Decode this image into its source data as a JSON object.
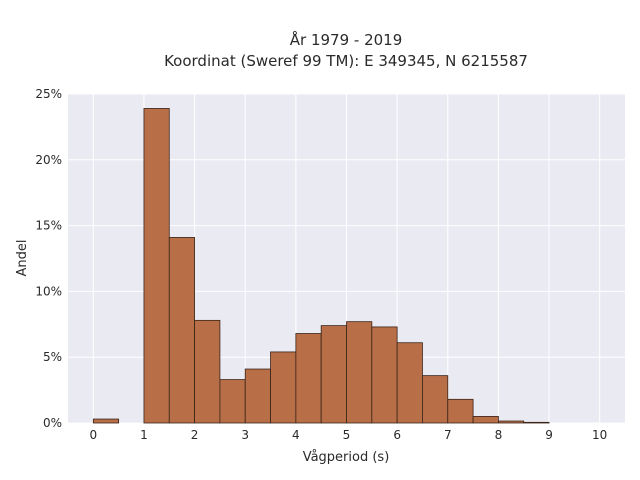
{
  "chart_data": {
    "type": "bar",
    "title": "År 1979 - 2019",
    "subtitle": "Koordinat (Sweref 99 TM): E 349345, N 6215587",
    "xlabel": "Vågperiod (s)",
    "ylabel": "Andel",
    "xlim": [
      -0.5,
      10.5
    ],
    "ylim": [
      0,
      25
    ],
    "xticks": [
      0,
      1,
      2,
      3,
      4,
      5,
      6,
      7,
      8,
      9,
      10
    ],
    "yticks": [
      0,
      5,
      10,
      15,
      20,
      25
    ],
    "ytick_labels": [
      "0%",
      "5%",
      "10%",
      "15%",
      "20%",
      "25%"
    ],
    "grid": true,
    "bar_color": "#b86f48",
    "bin_width": 0.5,
    "bins": [
      {
        "x0": 0.0,
        "value": 0.3
      },
      {
        "x0": 0.5,
        "value": 0.0
      },
      {
        "x0": 1.0,
        "value": 23.9
      },
      {
        "x0": 1.5,
        "value": 14.1
      },
      {
        "x0": 2.0,
        "value": 7.8
      },
      {
        "x0": 2.5,
        "value": 3.3
      },
      {
        "x0": 3.0,
        "value": 4.1
      },
      {
        "x0": 3.5,
        "value": 5.4
      },
      {
        "x0": 4.0,
        "value": 6.8
      },
      {
        "x0": 4.5,
        "value": 7.4
      },
      {
        "x0": 5.0,
        "value": 7.7
      },
      {
        "x0": 5.5,
        "value": 7.3
      },
      {
        "x0": 6.0,
        "value": 6.1
      },
      {
        "x0": 6.5,
        "value": 3.6
      },
      {
        "x0": 7.0,
        "value": 1.8
      },
      {
        "x0": 7.5,
        "value": 0.5
      },
      {
        "x0": 8.0,
        "value": 0.15
      },
      {
        "x0": 8.5,
        "value": 0.05
      },
      {
        "x0": 9.0,
        "value": 0.0
      },
      {
        "x0": 9.5,
        "value": 0.0
      }
    ]
  }
}
